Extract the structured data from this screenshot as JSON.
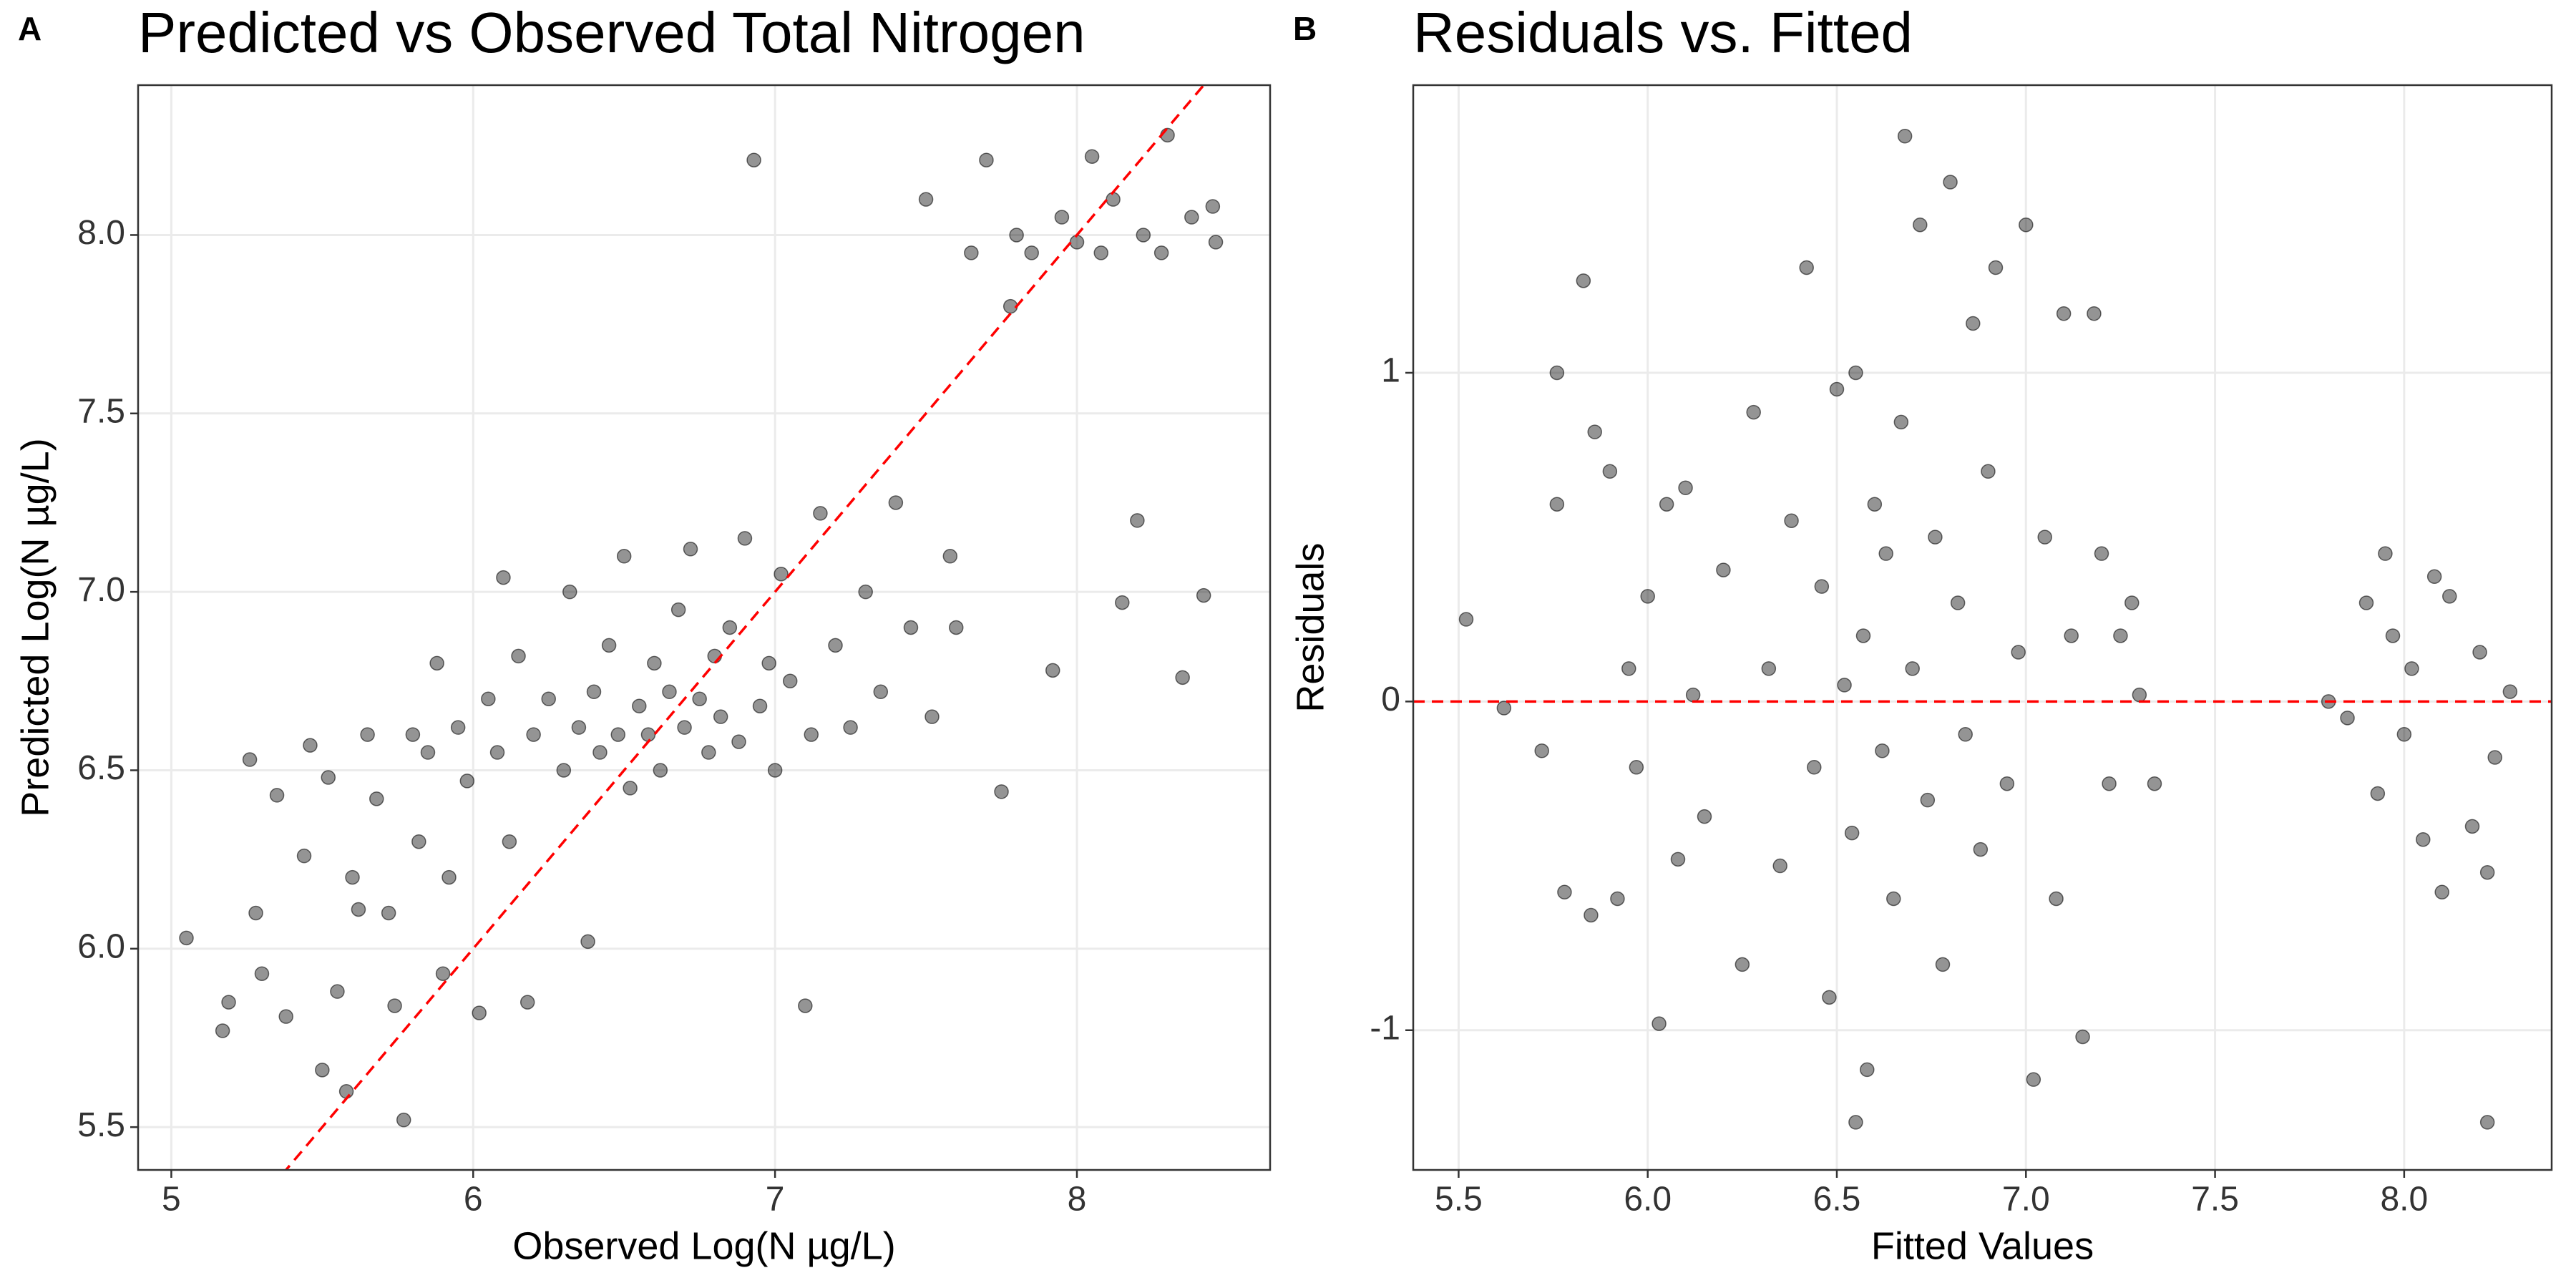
{
  "chart_data": [
    {
      "type": "scatter",
      "tag": "A",
      "title": "Predicted vs Observed Total Nitrogen",
      "x_label": "Observed Log(N µg/L)",
      "y_label": "Predicted Log(N µg/L)",
      "color": "#000000",
      "opacity": 0.42,
      "grid": true,
      "reference_line": "identity",
      "reference_color": "#ff0000",
      "xlim": [
        4.89,
        8.64
      ],
      "ylim": [
        5.38,
        8.42
      ],
      "xticks": [
        5,
        6,
        7,
        8
      ],
      "yticks": [
        5.5,
        {
          "value": 6,
          "label": "6.0"
        },
        6.5,
        {
          "value": 7,
          "label": "7.0"
        },
        7.5,
        {
          "value": 8,
          "label": "8.0"
        }
      ],
      "x": [
        5.05,
        5.17,
        5.19,
        5.26,
        5.28,
        5.3,
        5.35,
        5.38,
        5.44,
        5.46,
        5.5,
        5.52,
        5.55,
        5.58,
        5.6,
        5.62,
        5.65,
        5.68,
        5.72,
        5.74,
        5.77,
        5.8,
        5.82,
        5.85,
        5.88,
        5.9,
        5.92,
        5.95,
        5.98,
        6.02,
        6.05,
        6.08,
        6.1,
        6.12,
        6.15,
        6.18,
        6.2,
        6.25,
        6.3,
        6.32,
        6.35,
        6.38,
        6.4,
        6.42,
        6.45,
        6.48,
        6.5,
        6.52,
        6.55,
        6.58,
        6.6,
        6.62,
        6.65,
        6.68,
        6.7,
        6.72,
        6.75,
        6.78,
        6.8,
        6.82,
        6.85,
        6.88,
        6.9,
        6.93,
        6.95,
        6.98,
        7.0,
        7.02,
        7.05,
        7.1,
        7.12,
        7.15,
        7.2,
        7.25,
        7.3,
        7.35,
        7.4,
        7.45,
        7.5,
        7.52,
        7.58,
        7.6,
        7.65,
        7.7,
        7.75,
        7.78,
        7.8,
        7.85,
        7.92,
        7.95,
        8.0,
        8.05,
        8.08,
        8.12,
        8.15,
        8.2,
        8.22,
        8.28,
        8.3,
        8.35,
        8.38,
        8.42,
        8.45,
        8.46
      ],
      "values": [
        6.03,
        5.77,
        5.85,
        6.53,
        6.1,
        5.93,
        6.43,
        5.81,
        6.26,
        6.57,
        5.66,
        6.48,
        5.88,
        5.6,
        6.2,
        6.11,
        6.6,
        6.42,
        6.1,
        5.84,
        5.52,
        6.6,
        6.3,
        6.55,
        6.8,
        5.93,
        6.2,
        6.62,
        6.47,
        5.82,
        6.7,
        6.55,
        7.04,
        6.3,
        6.82,
        5.85,
        6.6,
        6.7,
        6.5,
        7.0,
        6.62,
        6.02,
        6.72,
        6.55,
        6.85,
        6.6,
        7.1,
        6.45,
        6.68,
        6.6,
        6.8,
        6.5,
        6.72,
        6.95,
        6.62,
        7.12,
        6.7,
        6.55,
        6.82,
        6.65,
        6.9,
        6.58,
        7.15,
        8.21,
        6.68,
        6.8,
        6.5,
        7.05,
        6.75,
        5.84,
        6.6,
        7.22,
        6.85,
        6.62,
        7.0,
        6.72,
        7.25,
        6.9,
        8.1,
        6.65,
        7.1,
        6.9,
        7.95,
        8.21,
        6.44,
        7.8,
        8.0,
        7.95,
        6.78,
        8.05,
        7.98,
        8.22,
        7.95,
        8.1,
        6.97,
        7.2,
        8.0,
        7.95,
        8.28,
        6.76,
        8.05,
        6.99,
        8.08,
        7.98
      ]
    },
    {
      "type": "scatter",
      "tag": "B",
      "title": "Residuals vs. Fitted",
      "x_label": "Fitted Values",
      "y_label": "Residuals",
      "color": "#000000",
      "opacity": 0.42,
      "grid": true,
      "hline": 0,
      "reference_color": "#ff0000",
      "xlim": [
        5.38,
        8.39
      ],
      "ylim": [
        -1.425,
        1.875
      ],
      "xticks": [
        5.5,
        {
          "value": 6,
          "label": "6.0"
        },
        6.5,
        {
          "value": 7,
          "label": "7.0"
        },
        7.5,
        {
          "value": 8,
          "label": "8.0"
        }
      ],
      "yticks": [
        -1,
        0,
        1
      ],
      "x": [
        5.52,
        5.62,
        5.72,
        5.76,
        5.76,
        5.78,
        5.83,
        5.85,
        5.86,
        5.9,
        5.92,
        5.95,
        5.97,
        6.0,
        6.03,
        6.05,
        6.08,
        6.1,
        6.12,
        6.15,
        6.2,
        6.25,
        6.28,
        6.32,
        6.35,
        6.38,
        6.42,
        6.44,
        6.46,
        6.48,
        6.5,
        6.52,
        6.54,
        6.55,
        6.57,
        6.58,
        6.55,
        6.6,
        6.62,
        6.63,
        6.65,
        6.67,
        6.68,
        6.7,
        6.72,
        6.74,
        6.76,
        6.78,
        6.8,
        6.82,
        6.84,
        6.86,
        6.88,
        6.9,
        6.92,
        6.95,
        6.98,
        7.0,
        7.02,
        7.05,
        7.08,
        7.1,
        7.12,
        7.15,
        7.18,
        7.2,
        7.22,
        7.25,
        7.28,
        7.3,
        7.34,
        7.8,
        7.85,
        7.9,
        7.93,
        7.95,
        7.97,
        8.0,
        8.02,
        8.05,
        8.08,
        8.1,
        8.12,
        8.18,
        8.2,
        8.22,
        8.22,
        8.24,
        8.28
      ],
      "values": [
        0.25,
        -0.02,
        -0.15,
        1.0,
        0.6,
        -0.58,
        1.28,
        -0.65,
        0.82,
        0.7,
        -0.6,
        0.1,
        -0.2,
        0.32,
        -0.98,
        0.6,
        -0.48,
        0.65,
        0.02,
        -0.35,
        0.4,
        -0.8,
        0.88,
        0.1,
        -0.5,
        0.55,
        1.32,
        -0.2,
        0.35,
        -0.9,
        0.95,
        0.05,
        -0.4,
        1.0,
        0.2,
        -1.12,
        -1.28,
        0.6,
        -0.15,
        0.45,
        -0.6,
        0.85,
        1.72,
        0.1,
        1.45,
        -0.3,
        0.5,
        -0.8,
        1.58,
        0.3,
        -0.1,
        1.15,
        -0.45,
        0.7,
        1.32,
        -0.25,
        0.15,
        1.45,
        -1.15,
        0.5,
        -0.6,
        1.18,
        0.2,
        -1.02,
        1.18,
        0.45,
        -0.25,
        0.2,
        0.3,
        0.02,
        -0.25,
        0.0,
        -0.05,
        0.3,
        -0.28,
        0.45,
        0.2,
        -0.1,
        0.1,
        -0.42,
        0.38,
        -0.58,
        0.32,
        -0.38,
        0.15,
        -1.28,
        -0.52,
        -0.17,
        0.03
      ]
    }
  ]
}
